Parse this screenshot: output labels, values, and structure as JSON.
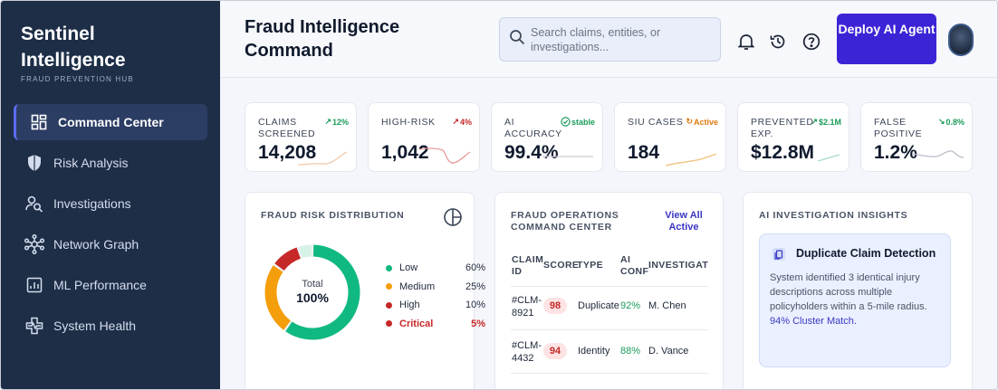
{
  "sidebar": {
    "brand": "Sentinel Intelligence",
    "subtitle": "FRAUD PREVENTION HUB",
    "items": [
      {
        "label": "Command Center",
        "icon": "dashboard-icon",
        "active": true
      },
      {
        "label": "Risk Analysis",
        "icon": "shield-icon"
      },
      {
        "label": "Investigations",
        "icon": "user-search-icon"
      },
      {
        "label": "Network Graph",
        "icon": "network-icon"
      },
      {
        "label": "ML Performance",
        "icon": "chart-icon"
      },
      {
        "label": "System Health",
        "icon": "health-icon"
      }
    ]
  },
  "header": {
    "title": "Fraud Intelligence Command",
    "search_placeholder": "Search claims, entities, or investigations...",
    "deploy_label": "Deploy AI Agent"
  },
  "kpis": [
    {
      "label": "CLAIMS SCREENED",
      "trend": "12%",
      "trend_color": "#1a9b5a",
      "value": "14,208",
      "spark_color": "#f2c9a8"
    },
    {
      "label": "HIGH-RISK",
      "trend": "4%",
      "trend_color": "#c62828",
      "value": "1,042",
      "spark_color": "#e89a9a"
    },
    {
      "label": "AI ACCURACY",
      "trend": "stable",
      "trend_color": "#1a9b5a",
      "value": "99.4%",
      "spark_color": "#c9ccd4"
    },
    {
      "label": "SIU CASES",
      "trend": "Active",
      "trend_color": "#e07b10",
      "value": "184",
      "spark_color": "#f0c27a"
    },
    {
      "label": "PREVENTED EXP.",
      "trend": "$2.1M",
      "trend_color": "#1a9b5a",
      "value": "$12.8M",
      "spark_color": "#a8dcc2"
    },
    {
      "label": "FALSE POSITIVE",
      "trend": "0.8%",
      "trend_color": "#1a9b5a",
      "value": "1.2%",
      "spark_color": "#b9bec8"
    }
  ],
  "risk": {
    "title": "FRAUD RISK DISTRIBUTION",
    "center_label": "Total",
    "center_value": "100%",
    "segments": [
      {
        "name": "Low",
        "pct": "60%",
        "value": 60,
        "color": "#10b981"
      },
      {
        "name": "Medium",
        "pct": "25%",
        "value": 25,
        "color": "#f59e0b"
      },
      {
        "name": "High",
        "pct": "10%",
        "value": 10,
        "color": "#c62828"
      },
      {
        "name": "Critical",
        "pct": "5%",
        "value": 5,
        "color": "#d6f3e6"
      }
    ]
  },
  "ops": {
    "title": "FRAUD OPERATIONS COMMAND CENTER",
    "view_all": "View All Active",
    "columns": [
      "CLAIM ID",
      "SCORE",
      "TYPE",
      "AI CONF",
      "INVESTIGATOR"
    ],
    "rows": [
      {
        "id": "#CLM-8921",
        "score": "98",
        "type": "Duplicate",
        "conf": "92%",
        "investigator": "M. Chen"
      },
      {
        "id": "#CLM-4432",
        "score": "94",
        "type": "Identity",
        "conf": "88%",
        "investigator": "D. Vance"
      }
    ]
  },
  "insights": {
    "title": "AI INVESTIGATION INSIGHTS",
    "card_title": "Duplicate Claim Detection",
    "card_text": "System identified 3 identical injury descriptions across multiple policyholders within a 5-mile radius.",
    "card_link": "94% Cluster Match."
  }
}
